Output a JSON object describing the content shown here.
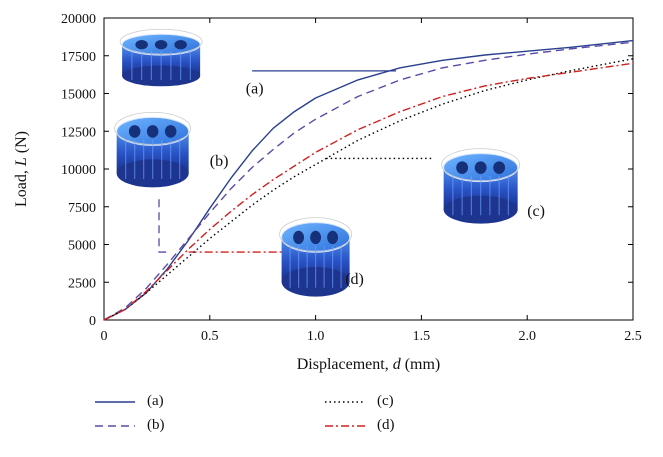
{
  "chart_data": {
    "type": "line",
    "xlabel_prefix": "Displacement, ",
    "xlabel_var": "d",
    "xlabel_suffix": " (mm)",
    "ylabel_prefix": "Load, ",
    "ylabel_var": "L",
    "ylabel_suffix": " (N)",
    "xlim": [
      0,
      2.5
    ],
    "ylim": [
      0,
      20000
    ],
    "xticks": [
      0,
      0.5,
      1.0,
      1.5,
      2.0,
      2.5
    ],
    "xtick_labels": [
      "0",
      "0.5",
      "1.0",
      "1.5",
      "2.0",
      "2.5"
    ],
    "yticks": [
      0,
      2500,
      5000,
      7500,
      10000,
      12500,
      15000,
      17500,
      20000
    ],
    "ytick_labels": [
      "0",
      "2500",
      "5000",
      "7500",
      "10000",
      "12500",
      "15000",
      "17500",
      "20000"
    ],
    "grid": false,
    "legend_position": "bottom",
    "series": [
      {
        "name": "(a)",
        "color": "#2a3f8f",
        "dash": "",
        "x": [
          0,
          0.1,
          0.2,
          0.3,
          0.4,
          0.5,
          0.6,
          0.7,
          0.8,
          0.9,
          1.0,
          1.2,
          1.4,
          1.6,
          1.8,
          2.0,
          2.2,
          2.5
        ],
        "y": [
          0,
          700,
          1800,
          3400,
          5300,
          7400,
          9400,
          11200,
          12700,
          13800,
          14700,
          15900,
          16700,
          17200,
          17550,
          17800,
          18050,
          18500
        ]
      },
      {
        "name": "(b)",
        "color": "#5a4aa8",
        "dash": "8,5",
        "x": [
          0,
          0.1,
          0.2,
          0.3,
          0.4,
          0.5,
          0.6,
          0.7,
          0.8,
          0.9,
          1.0,
          1.2,
          1.4,
          1.6,
          1.8,
          2.0,
          2.2,
          2.5
        ],
        "y": [
          0,
          800,
          2100,
          3700,
          5400,
          7100,
          8700,
          10100,
          11300,
          12400,
          13300,
          14800,
          15900,
          16700,
          17200,
          17600,
          17950,
          18400
        ]
      },
      {
        "name": "(c)",
        "color": "#000000",
        "dash": "1.5,3",
        "x": [
          0,
          0.1,
          0.2,
          0.3,
          0.4,
          0.5,
          0.6,
          0.7,
          0.8,
          0.9,
          1.0,
          1.2,
          1.4,
          1.6,
          1.8,
          2.0,
          2.2,
          2.5
        ],
        "y": [
          0,
          700,
          1800,
          3000,
          4200,
          5400,
          6500,
          7600,
          8600,
          9500,
          10300,
          11900,
          13200,
          14300,
          15200,
          15900,
          16500,
          17300
        ]
      },
      {
        "name": "(d)",
        "color": "#d02020",
        "dash": "8,3,2,3",
        "x": [
          0,
          0.1,
          0.2,
          0.3,
          0.4,
          0.5,
          0.6,
          0.7,
          0.8,
          0.9,
          1.0,
          1.2,
          1.4,
          1.6,
          1.8,
          2.0,
          2.2,
          2.5
        ],
        "y": [
          0,
          700,
          1900,
          3300,
          4700,
          6000,
          7200,
          8300,
          9300,
          10200,
          11100,
          12600,
          13800,
          14800,
          15500,
          16000,
          16400,
          17000
        ]
      }
    ],
    "annotations": [
      {
        "label": "(a)",
        "x": 0.67,
        "y": 15000
      },
      {
        "label": "(b)",
        "x": 0.5,
        "y": 10200
      },
      {
        "label": "(c)",
        "x": 2.0,
        "y": 6900
      },
      {
        "label": "(d)",
        "x": 1.14,
        "y": 2400
      }
    ],
    "leaders": [
      {
        "series": "(a)",
        "dash": "",
        "color": "#2a3f8f",
        "x": [
          0.7,
          1.38
        ],
        "y": [
          16500,
          16500
        ]
      },
      {
        "series": "(b)",
        "dash": "8,5",
        "color": "#5a4aa8",
        "x": [
          0.26,
          0.26,
          0.3
        ],
        "y": [
          8000,
          4500,
          4500
        ]
      },
      {
        "series": "(c)",
        "dash": "1.5,3",
        "color": "#000000",
        "x": [
          1.05,
          1.55
        ],
        "y": [
          10700,
          10700
        ]
      },
      {
        "series": "(d)",
        "dash": "8,3,2,3",
        "color": "#d02020",
        "x": [
          0.4,
          0.85
        ],
        "y": [
          4500,
          4500
        ]
      }
    ],
    "models": [
      {
        "series": "(a)",
        "x": 0.27,
        "y": 17200,
        "w": 78,
        "h": 52
      },
      {
        "series": "(b)",
        "x": 0.23,
        "y": 11100,
        "w": 72,
        "h": 70
      },
      {
        "series": "(c)",
        "x": 1.78,
        "y": 8700,
        "w": 74,
        "h": 70
      },
      {
        "series": "(d)",
        "x": 1.0,
        "y": 4000,
        "w": 68,
        "h": 74
      }
    ]
  }
}
